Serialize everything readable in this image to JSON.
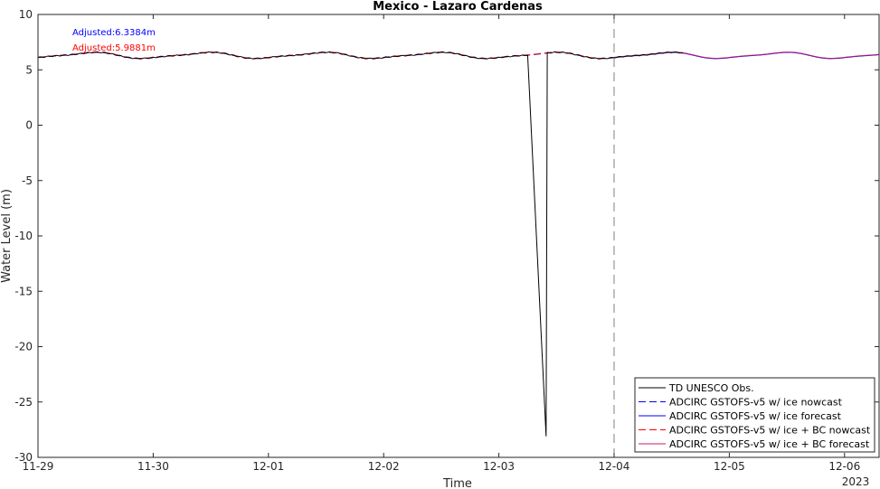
{
  "chart_data": {
    "type": "line",
    "title": "Mexico - Lazaro Cardenas",
    "xlabel": "Time",
    "ylabel": "Water Level (m)",
    "x_ticks": [
      "11-29",
      "11-30",
      "12-01",
      "12-02",
      "12-03",
      "12-04",
      "12-05",
      "12-06"
    ],
    "x_year_label": "2023",
    "xlim_days": [
      0,
      7.3
    ],
    "ylim": [
      -30,
      10
    ],
    "y_ticks": [
      -30,
      -25,
      -20,
      -15,
      -10,
      -5,
      0,
      5,
      10
    ],
    "nowcast_forecast_divider_day": 5,
    "annotations": [
      {
        "text": "Adjusted:6.3384m",
        "color": "#0000ff"
      },
      {
        "text": "Adjusted:5.9881m",
        "color": "#ff0000"
      }
    ],
    "legend_position": "bottom-right",
    "series": [
      {
        "name": "TD UNESCO Obs.",
        "color": "#000000",
        "style": "solid"
      },
      {
        "name": "ADCIRC GSTOFS-v5 w/ ice nowcast",
        "color": "#0000ff",
        "style": "dashed"
      },
      {
        "name": "ADCIRC GSTOFS-v5 w/ ice forecast",
        "color": "#0000ff",
        "style": "solid"
      },
      {
        "name": "ADCIRC GSTOFS-v5 w/ ice + BC nowcast",
        "color": "#ff0000",
        "style": "dashed"
      },
      {
        "name": "ADCIRC GSTOFS-v5 w/ ice + BC forecast",
        "color": "#c0206a",
        "style": "solid"
      }
    ],
    "obs_spike": {
      "start_day": 4.25,
      "min_day": 4.41,
      "min_value": -28.1,
      "end_day": 4.42
    }
  }
}
